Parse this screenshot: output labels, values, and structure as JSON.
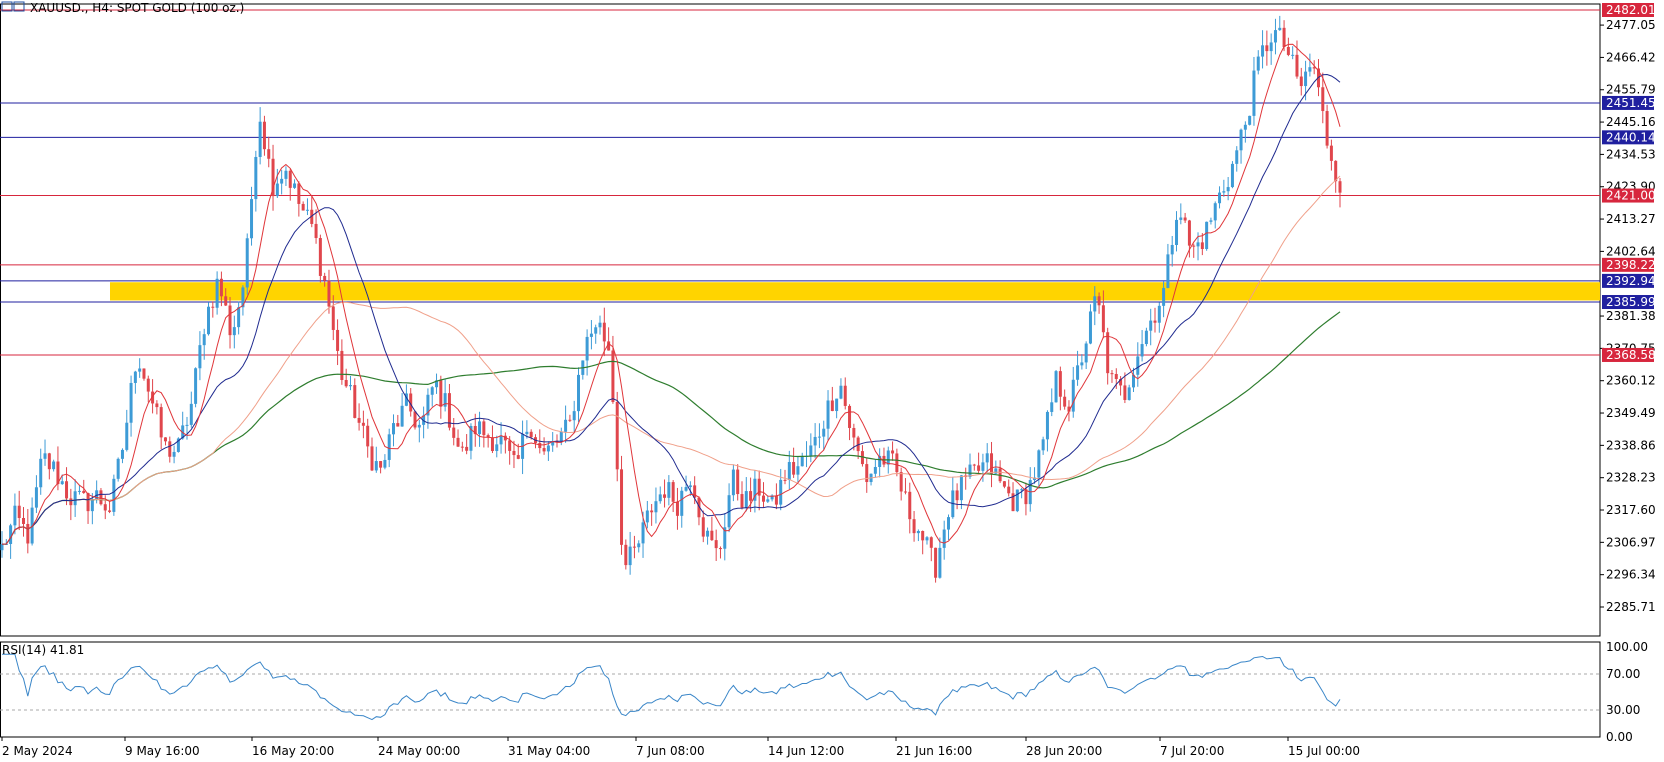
{
  "header": {
    "symbol_text": "XAUUSD., H4:  SPOT GOLD (100 oz.)"
  },
  "rsi_panel": {
    "label": "RSI(14) 41.81"
  },
  "colors": {
    "bull": "#3d9bd6",
    "bear": "#e0464c",
    "ma_fast": "#e0363a",
    "ma_mid": "#1f2a8f",
    "ma_slow": "#f0a08a",
    "ma_long": "#2e7d2e",
    "zone": "#ffd400",
    "red_level": "#d7263d",
    "blue_level": "#1f1f9f",
    "rsi": "#3a86c8"
  },
  "chart_data": [
    {
      "type": "candlestick",
      "title": "XAUUSD., H4:  SPOT GOLD (100 oz.)",
      "y_ticks": [
        "2477.05",
        "2466.42",
        "2455.79",
        "2445.16",
        "2434.53",
        "2423.90",
        "2413.27",
        "2402.64",
        "2381.38",
        "2370.75",
        "2360.12",
        "2349.49",
        "2338.86",
        "2328.23",
        "2317.60",
        "2306.97",
        "2296.34",
        "2285.71"
      ],
      "ylim": [
        2279.0,
        2487.0
      ],
      "x_ticks": [
        "2 May 2024",
        "9 May 16:00",
        "16 May 20:00",
        "24 May 00:00",
        "31 May 04:00",
        "7 Jun 08:00",
        "14 Jun 12:00",
        "21 Jun 16:00",
        "28 Jun 20:00",
        "7 Jul 20:00",
        "15 Jul 00:00"
      ],
      "price_close_anchors": [
        2305,
        2315,
        2309,
        2335,
        2330,
        2322,
        2320,
        2322,
        2318,
        2340,
        2370,
        2355,
        2338,
        2337,
        2352,
        2380,
        2393,
        2375,
        2395,
        2450,
        2425,
        2430,
        2418,
        2410,
        2390,
        2364,
        2352,
        2338,
        2330,
        2345,
        2352,
        2344,
        2360,
        2350,
        2335,
        2345,
        2342,
        2340,
        2330,
        2348,
        2335,
        2340,
        2345,
        2370,
        2380,
        2370,
        2298,
        2305,
        2318,
        2325,
        2320,
        2330,
        2310,
        2302,
        2328,
        2320,
        2325,
        2318,
        2330,
        2332,
        2338,
        2350,
        2360,
        2340,
        2328,
        2335,
        2332,
        2318,
        2310,
        2298,
        2318,
        2325,
        2330,
        2333,
        2325,
        2320,
        2325,
        2338,
        2360,
        2352,
        2370,
        2388,
        2360,
        2355,
        2370,
        2380,
        2390,
        2420,
        2402,
        2408,
        2420,
        2430,
        2445,
        2465,
        2475,
        2470,
        2456,
        2465,
        2440,
        2425
      ],
      "levels": [
        {
          "label": "2482.01",
          "value": 2482.01,
          "color_key": "red_level"
        },
        {
          "label": "2451.45",
          "value": 2451.45,
          "color_key": "blue_level"
        },
        {
          "label": "2440.14",
          "value": 2440.14,
          "color_key": "blue_level"
        },
        {
          "label": "2421.00",
          "value": 2421.0,
          "color_key": "red_level"
        },
        {
          "label": "2398.22",
          "value": 2398.22,
          "color_key": "red_level"
        },
        {
          "label": "2392.94",
          "value": 2392.94,
          "color_key": "blue_level"
        },
        {
          "label": "2385.99",
          "value": 2385.99,
          "color_key": "blue_level"
        },
        {
          "label": "2368.58",
          "value": 2368.58,
          "color_key": "red_level"
        }
      ],
      "zone": {
        "from": 2386.5,
        "to": 2392.5
      }
    },
    {
      "type": "line",
      "title": "RSI(14) 41.81",
      "y_ticks": [
        "100.00",
        "70.00",
        "30.00",
        "0.00"
      ],
      "ylim": [
        0,
        100
      ],
      "reference_lines": [
        70,
        30
      ],
      "last_value": 41.81
    }
  ]
}
